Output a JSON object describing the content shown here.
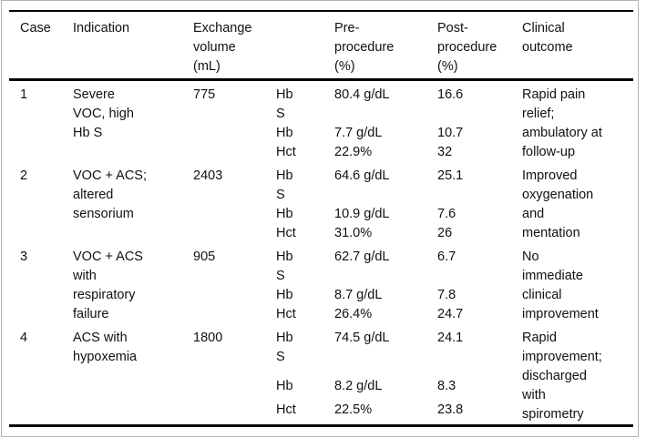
{
  "colors": {
    "background": "#ffffff",
    "text": "#111111",
    "rule": "#000000",
    "page_frame": "#b3b3b3"
  },
  "table": {
    "headers": {
      "case": "Case",
      "indication": "Indication",
      "volume": "Exchange\nvolume\n(mL)",
      "lab": "",
      "pre": "Pre-\nprocedure\n(%)",
      "post": "Post-\nprocedure\n(%)",
      "outcome": "Clinical\noutcome"
    },
    "rows": [
      {
        "case": "1",
        "indication": "Severe\nVOC, high\nHb S",
        "volume": "775",
        "labs": [
          {
            "name": "Hb\nS",
            "pre": "80.4 g/dL",
            "post": "16.6"
          },
          {
            "name": "Hb",
            "pre": "7.7 g/dL",
            "post": "10.7"
          },
          {
            "name": "Hct",
            "pre": "22.9%",
            "post": "32"
          }
        ],
        "outcome": "Rapid pain\nrelief;\nambulatory at\nfollow-up"
      },
      {
        "case": "2",
        "indication": "VOC + ACS;\naltered\nsensorium",
        "volume": "2403",
        "labs": [
          {
            "name": "Hb\nS",
            "pre": "64.6 g/dL",
            "post": "25.1"
          },
          {
            "name": "Hb",
            "pre": "10.9 g/dL",
            "post": "7.6"
          },
          {
            "name": "Hct",
            "pre": "31.0%",
            "post": "26"
          }
        ],
        "outcome": "Improved\noxygenation\nand\nmentation"
      },
      {
        "case": "3",
        "indication": "VOC + ACS\nwith\nrespiratory\nfailure",
        "volume": "905",
        "labs": [
          {
            "name": "Hb\nS",
            "pre": "62.7 g/dL",
            "post": "6.7"
          },
          {
            "name": "Hb",
            "pre": "8.7 g/dL",
            "post": "7.8"
          },
          {
            "name": "Hct",
            "pre": "26.4%",
            "post": "24.7"
          }
        ],
        "outcome": "No\nimmediate\nclinical\nimprovement"
      },
      {
        "case": "4",
        "indication": "ACS with\nhypoxemia",
        "volume": "1800",
        "labs": [
          {
            "name": "Hb\nS",
            "pre": "74.5 g/dL",
            "post": "24.1"
          },
          {
            "name": "Hb",
            "pre": "8.2 g/dL",
            "post": "8.3"
          },
          {
            "name": "Hct",
            "pre": "22.5%",
            "post": "23.8"
          }
        ],
        "outcome": "Rapid\nimprovement;\ndischarged\nwith\nspirometry"
      }
    ]
  }
}
